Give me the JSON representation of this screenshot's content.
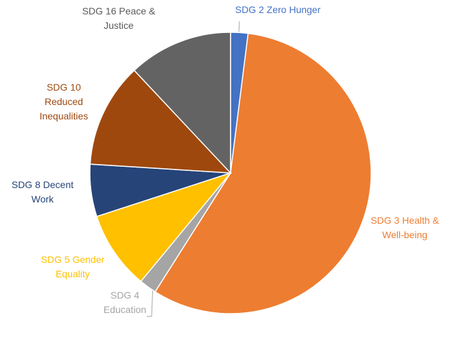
{
  "chart_data": {
    "type": "pie",
    "categories": [
      "SDG 2 Zero Hunger",
      "SDG 3 Health & Well-being",
      "SDG 4 Education",
      "SDG 5 Gender Equality",
      "SDG 8 Decent Work",
      "SDG 10 Reduced Inequalities",
      "SDG 16 Peace & Justice"
    ],
    "values": [
      2,
      57,
      2,
      9,
      6,
      12,
      12
    ],
    "colors": [
      "#4472c4",
      "#ed7d31",
      "#a5a5a5",
      "#ffc000",
      "#264478",
      "#9e480e",
      "#636363"
    ]
  }
}
